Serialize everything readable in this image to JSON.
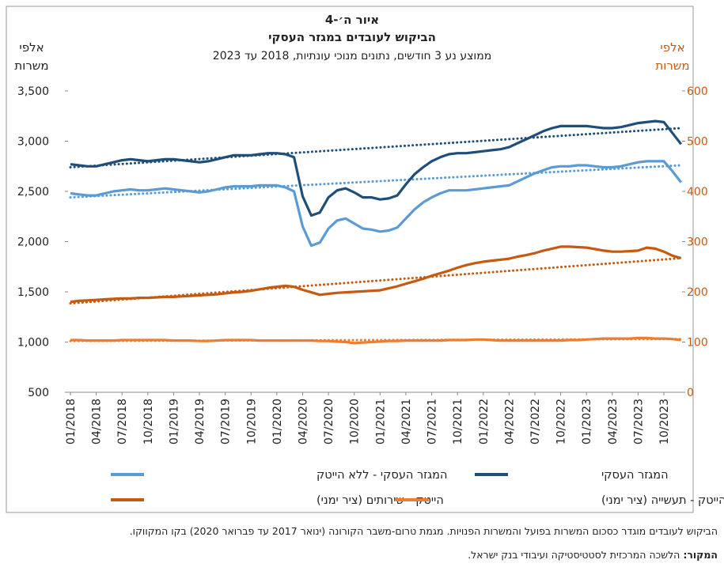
{
  "chart_data": {
    "type": "line",
    "title": "איור ה׳-4",
    "subtitle": "הביקוש לעובדים במגזר העסקי",
    "subtitle2": "ממוצע נע 3 חודשים, נתונים מנוכי עונתיות, 2018 עד 2023",
    "y_label": [
      "אלפי",
      "משרות"
    ],
    "y2_label": [
      "אלפי",
      "משרות"
    ],
    "categories": [
      "01/2018",
      null,
      null,
      "04/2018",
      null,
      null,
      "07/2018",
      null,
      null,
      "10/2018",
      null,
      null,
      "01/2019",
      null,
      null,
      "04/2019",
      null,
      null,
      "07/2019",
      null,
      null,
      "10/2019",
      null,
      null,
      "01/2020",
      null,
      null,
      "04/2020",
      null,
      null,
      "07/2020",
      null,
      null,
      "10/2020",
      null,
      null,
      "01/2021",
      null,
      null,
      "04/2021",
      null,
      null,
      "07/2021",
      null,
      null,
      "10/2021",
      null,
      null,
      "01/2022",
      null,
      null,
      "04/2022",
      null,
      null,
      "07/2022",
      null,
      null,
      "10/2022",
      null,
      null,
      "01/2023",
      null,
      null,
      "04/2023",
      null,
      null,
      "07/2023",
      null,
      null,
      "10/2023",
      null,
      null
    ],
    "ylim": [
      500,
      3500
    ],
    "yticks": [
      500,
      {
        "value": 1000,
        "label": "1,000"
      },
      {
        "value": 1500,
        "label": "1,500"
      },
      {
        "value": 2000,
        "label": "2,000"
      },
      {
        "value": 2500,
        "label": "2,500"
      },
      {
        "value": 3000,
        "label": "3,000"
      },
      {
        "value": 3500,
        "label": "3,500"
      }
    ],
    "y2lim": [
      0,
      600
    ],
    "y2ticks": [
      0,
      100,
      200,
      300,
      400,
      500,
      600
    ],
    "series": [
      {
        "name": "המגזר העסקי",
        "color": "#1f4e79",
        "trend": [
          2740,
          3130
        ],
        "values": [
          2770,
          2760,
          2750,
          2750,
          2770,
          2790,
          2810,
          2820,
          2810,
          2800,
          2810,
          2820,
          2820,
          2810,
          2800,
          2790,
          2800,
          2820,
          2840,
          2860,
          2860,
          2860,
          2870,
          2880,
          2880,
          2870,
          2840,
          2450,
          2260,
          2290,
          2440,
          2510,
          2530,
          2490,
          2440,
          2440,
          2420,
          2430,
          2460,
          2570,
          2670,
          2740,
          2800,
          2840,
          2870,
          2880,
          2880,
          2890,
          2900,
          2910,
          2920,
          2940,
          2980,
          3020,
          3060,
          3100,
          3130,
          3150,
          3150,
          3150,
          3150,
          3140,
          3130,
          3130,
          3140,
          3160,
          3180,
          3190,
          3200,
          3190,
          3080,
          2970
        ]
      },
      {
        "name": "המגזר העסקי - ללא הייטק",
        "color": "#5b9bd5",
        "trend": [
          2440,
          2760
        ],
        "values": [
          2480,
          2470,
          2460,
          2460,
          2480,
          2500,
          2510,
          2520,
          2510,
          2510,
          2520,
          2530,
          2520,
          2510,
          2500,
          2490,
          2500,
          2520,
          2540,
          2550,
          2550,
          2550,
          2560,
          2560,
          2560,
          2540,
          2500,
          2150,
          1960,
          1990,
          2130,
          2210,
          2230,
          2180,
          2130,
          2120,
          2100,
          2110,
          2140,
          2230,
          2320,
          2390,
          2440,
          2480,
          2510,
          2510,
          2510,
          2520,
          2530,
          2540,
          2550,
          2560,
          2600,
          2640,
          2680,
          2710,
          2740,
          2750,
          2750,
          2760,
          2760,
          2750,
          2740,
          2740,
          2750,
          2770,
          2790,
          2800,
          2800,
          2800,
          2700,
          2590
        ]
      },
      {
        "name": "הייטק - שירותים (ציר ימני)",
        "color": "#c55a11",
        "axis": "y2",
        "trend": [
          177,
          267
        ],
        "values": [
          180,
          182,
          183,
          184,
          185,
          186,
          187,
          187,
          188,
          188,
          189,
          190,
          190,
          191,
          192,
          193,
          194,
          195,
          197,
          199,
          200,
          202,
          205,
          208,
          210,
          212,
          210,
          204,
          199,
          194,
          196,
          198,
          199,
          200,
          201,
          202,
          203,
          207,
          211,
          216,
          221,
          226,
          232,
          237,
          242,
          248,
          253,
          257,
          260,
          262,
          264,
          266,
          270,
          273,
          277,
          282,
          286,
          290,
          290,
          289,
          288,
          285,
          282,
          280,
          280,
          281,
          282,
          288,
          286,
          280,
          272,
          267
        ]
      },
      {
        "name": "הייטק - תעשייה (ציר ימני)",
        "color": "#ed7d31",
        "axis": "y2",
        "trend": [
          102,
          106
        ],
        "values": [
          104,
          104,
          103,
          103,
          103,
          103,
          104,
          104,
          104,
          104,
          104,
          104,
          103,
          103,
          103,
          102,
          102,
          103,
          104,
          104,
          104,
          104,
          103,
          103,
          103,
          103,
          103,
          103,
          103,
          102,
          102,
          101,
          100,
          98,
          99,
          100,
          101,
          102,
          102,
          103,
          103,
          103,
          103,
          103,
          104,
          104,
          104,
          105,
          105,
          104,
          103,
          103,
          103,
          103,
          103,
          103,
          103,
          103,
          104,
          104,
          105,
          106,
          107,
          107,
          107,
          107,
          108,
          108,
          107,
          107,
          106,
          104
        ]
      }
    ],
    "notes": "הביקוש לעובדים מוגדר כסכום המשרות בפועל והמשרות הפנויות. מגמת טרום-משבר הקורונה (ינואר 2017 עד פברואר 2020) בקו המקווקו.",
    "source_label": "המקור:",
    "source": "הלשכה המרכזית לסטטיסטיקה ועיבודי בנק ישראל."
  }
}
